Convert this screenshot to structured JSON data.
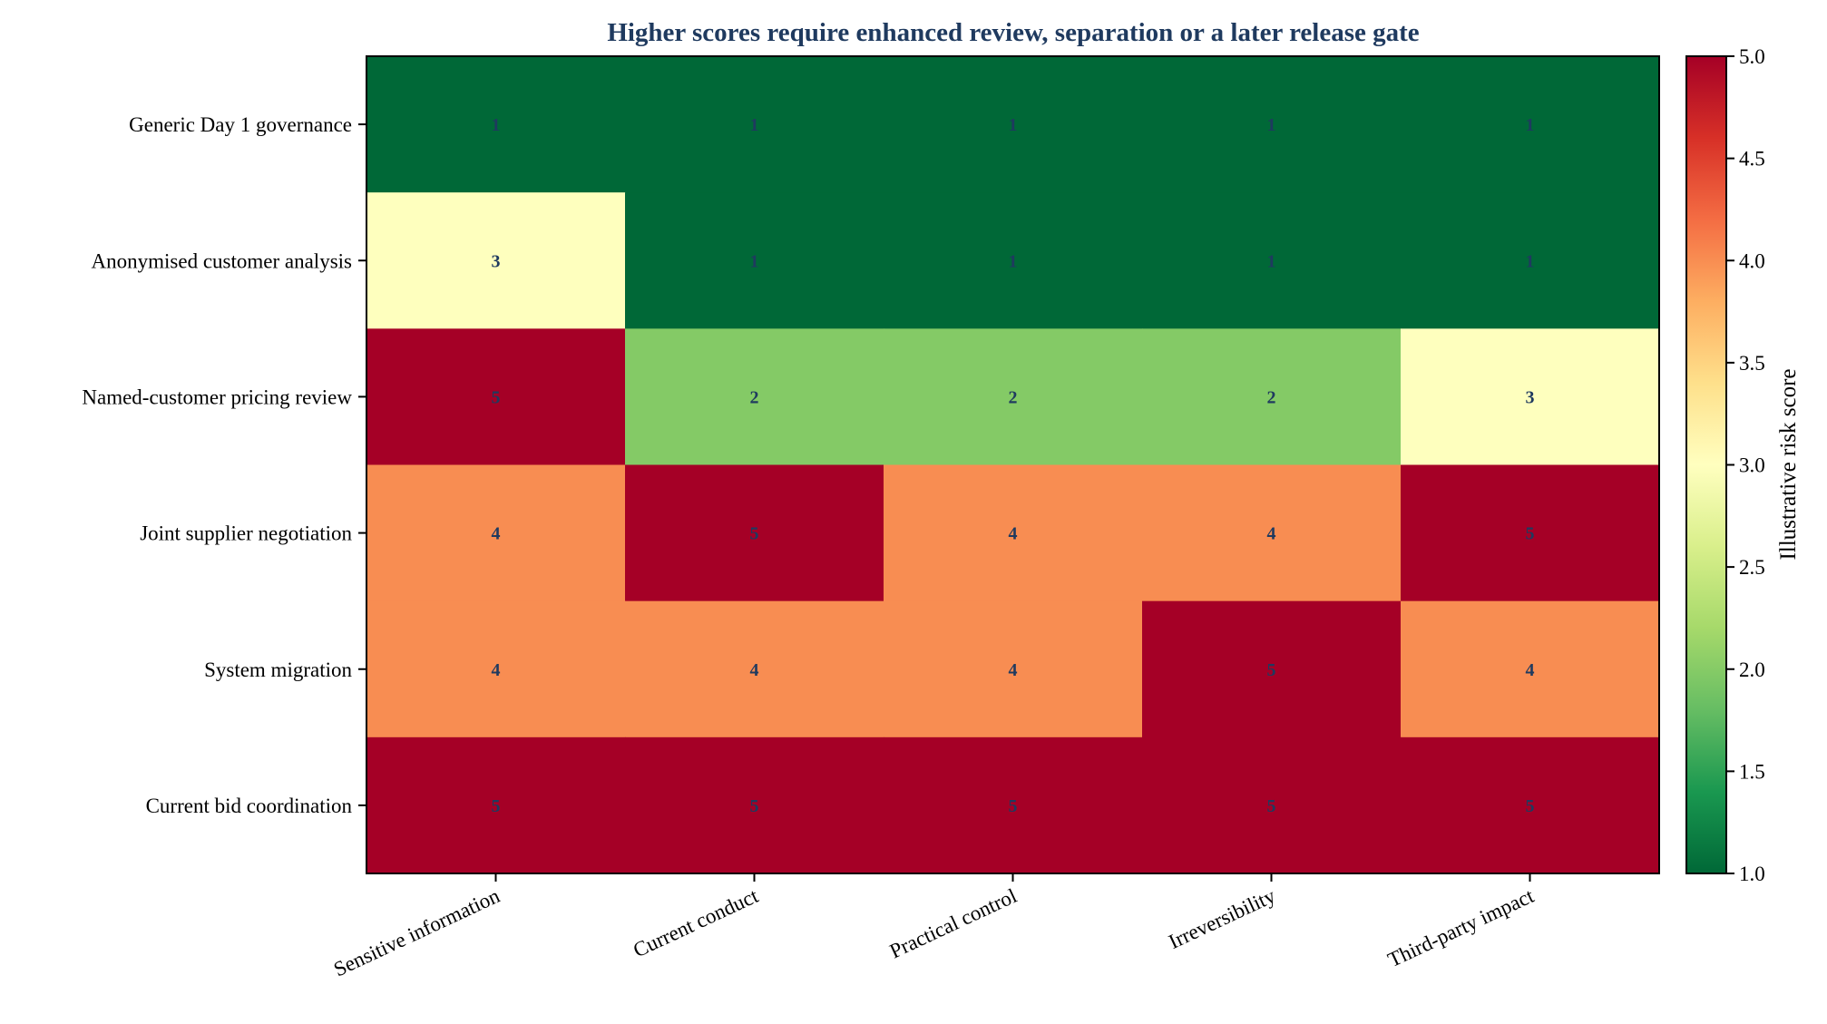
{
  "chart_data": {
    "type": "heatmap",
    "title": "Higher scores require enhanced review, separation or a later release gate",
    "rows": [
      "Generic Day 1 governance",
      "Anonymised customer analysis",
      "Named-customer pricing review",
      "Joint supplier negotiation",
      "System migration",
      "Current bid coordination"
    ],
    "columns": [
      "Sensitive information",
      "Current conduct",
      "Practical control",
      "Irreversibility",
      "Third-party impact"
    ],
    "values": [
      [
        1,
        1,
        1,
        1,
        1
      ],
      [
        3,
        1,
        1,
        1,
        1
      ],
      [
        5,
        2,
        2,
        2,
        3
      ],
      [
        4,
        5,
        4,
        4,
        5
      ],
      [
        4,
        4,
        4,
        5,
        4
      ],
      [
        5,
        5,
        5,
        5,
        5
      ]
    ],
    "colorbar": {
      "label": "Illustrative risk score",
      "range": [
        1.0,
        5.0
      ],
      "ticks": [
        "1.0",
        "1.5",
        "2.0",
        "2.5",
        "3.0",
        "3.5",
        "4.0",
        "4.5",
        "5.0"
      ],
      "colormap": "RdYlGn_r"
    },
    "colors": {
      "1": "#006837",
      "2": "#84ca66",
      "3": "#feffbe",
      "4": "#f88d52",
      "5": "#a50026",
      "title": "#1f3a5f",
      "cell_text": "#1f3a5f"
    }
  }
}
